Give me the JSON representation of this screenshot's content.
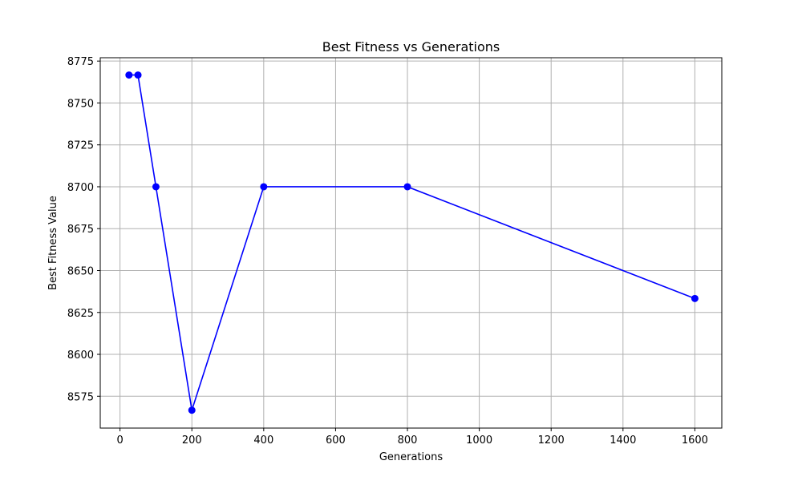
{
  "chart_data": {
    "type": "line",
    "title": "Best Fitness vs Generations",
    "xlabel": "Generations",
    "ylabel": "Best Fitness Value",
    "xlim": [
      -55,
      1675
    ],
    "ylim": [
      8556,
      8777
    ],
    "xticks": [
      0,
      200,
      400,
      600,
      800,
      1000,
      1200,
      1400,
      1600
    ],
    "yticks": [
      8575,
      8600,
      8625,
      8650,
      8675,
      8700,
      8725,
      8750,
      8775
    ],
    "grid": true,
    "series": [
      {
        "color": "#0000ff",
        "marker": "circle",
        "x": [
          25,
          50,
          100,
          200,
          400,
          800,
          1600
        ],
        "y": [
          8766.67,
          8766.67,
          8700,
          8566.67,
          8700,
          8700,
          8633.33
        ]
      }
    ]
  }
}
